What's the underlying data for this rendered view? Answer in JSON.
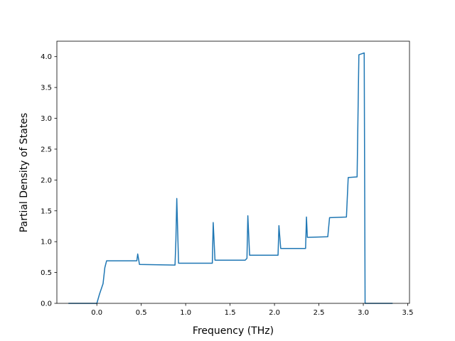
{
  "chart_data": {
    "type": "line",
    "title": "",
    "xlabel": "Frequency (THz)",
    "ylabel": "Partial Density of States",
    "xlim": [
      -0.45,
      3.52
    ],
    "ylim": [
      0.0,
      4.25
    ],
    "xticks": [
      0.0,
      0.5,
      1.0,
      1.5,
      2.0,
      2.5,
      3.0,
      3.5
    ],
    "xtick_labels": [
      "0.0",
      "0.5",
      "1.0",
      "1.5",
      "2.0",
      "2.5",
      "3.0",
      "3.5"
    ],
    "yticks": [
      0.0,
      0.5,
      1.0,
      1.5,
      2.0,
      2.5,
      3.0,
      3.5,
      4.0
    ],
    "ytick_labels": [
      "0.0",
      "0.5",
      "1.0",
      "1.5",
      "2.0",
      "2.5",
      "3.0",
      "3.5",
      "4.0"
    ],
    "grid": false,
    "line_color": "#1f77b4",
    "series": [
      {
        "x": [
          -0.32,
          0.0,
          0.03,
          0.07,
          0.09,
          0.11,
          0.45,
          0.46,
          0.48,
          0.88,
          0.89,
          0.9,
          0.92,
          1.3,
          1.31,
          1.33,
          1.67,
          1.69,
          1.7,
          1.72,
          2.04,
          2.05,
          2.07,
          2.35,
          2.36,
          2.37,
          2.6,
          2.62,
          2.81,
          2.83,
          2.93,
          2.95,
          3.01,
          3.02,
          3.33
        ],
        "y": [
          0.0,
          0.0,
          0.15,
          0.32,
          0.58,
          0.69,
          0.69,
          0.8,
          0.63,
          0.62,
          1.03,
          1.7,
          0.65,
          0.65,
          1.31,
          0.7,
          0.7,
          0.73,
          1.42,
          0.78,
          0.78,
          1.26,
          0.89,
          0.89,
          1.4,
          1.07,
          1.08,
          1.39,
          1.4,
          2.04,
          2.05,
          4.03,
          4.06,
          0.0,
          0.0
        ]
      }
    ]
  }
}
